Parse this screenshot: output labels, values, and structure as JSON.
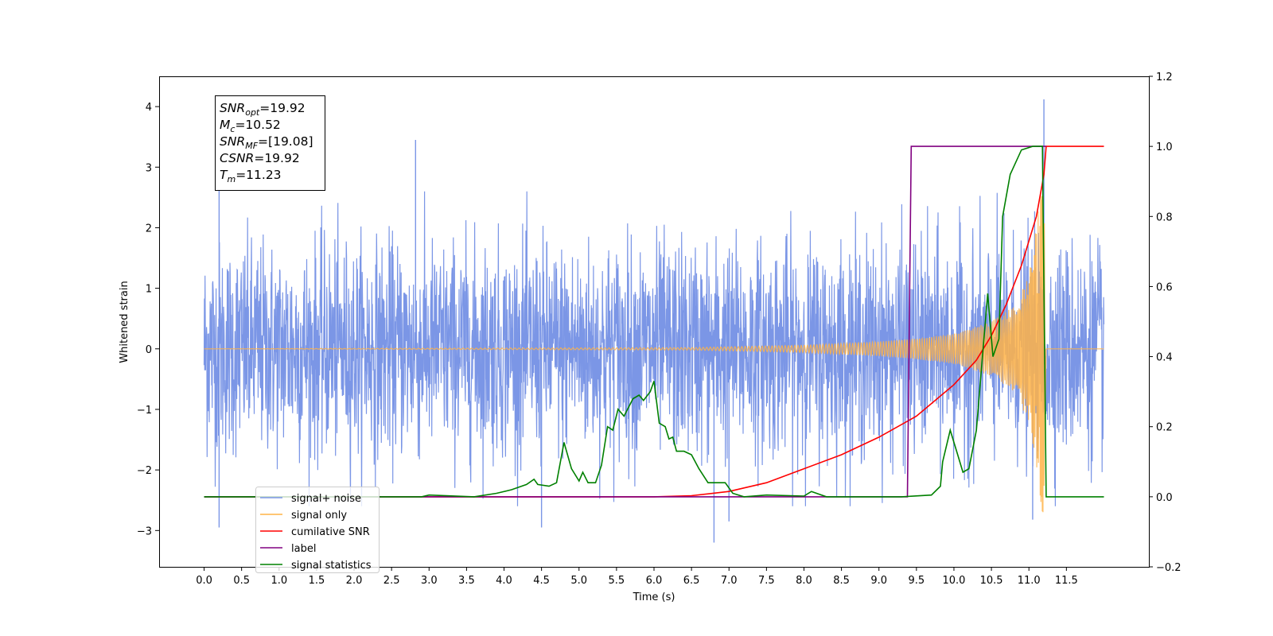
{
  "chart_data": {
    "type": "line",
    "xlabel": "Time (s)",
    "ylabel": "Whitened strain",
    "xlim": [
      -0.6,
      12.6
    ],
    "ylim": [
      -3.6,
      4.5
    ],
    "y2lim": [
      -0.2,
      1.2
    ],
    "x_ticks": [
      "0.0",
      "0.5",
      "1.0",
      "1.5",
      "2.0",
      "2.5",
      "3.0",
      "3.5",
      "4.0",
      "4.5",
      "5.0",
      "5.5",
      "6.0",
      "6.5",
      "7.0",
      "7.5",
      "8.0",
      "8.5",
      "9.0",
      "9.5",
      "10.0",
      "10.5",
      "11.0",
      "11.5"
    ],
    "y_ticks": [
      {
        "value": 4,
        "label": "4"
      },
      {
        "value": 3,
        "label": "3"
      },
      {
        "value": 2,
        "label": "2"
      },
      {
        "value": 1,
        "label": "1"
      },
      {
        "value": 0,
        "label": "0"
      },
      {
        "value": -1,
        "label": "−1"
      },
      {
        "value": -2,
        "label": "−2"
      },
      {
        "value": -3,
        "label": "−3"
      }
    ],
    "y2_ticks": [
      {
        "value": 1.2,
        "label": "1.2"
      },
      {
        "value": 1.0,
        "label": "1.0"
      },
      {
        "value": 0.8,
        "label": "0.8"
      },
      {
        "value": 0.6,
        "label": "0.6"
      },
      {
        "value": 0.4,
        "label": "0.4"
      },
      {
        "value": 0.2,
        "label": "0.2"
      },
      {
        "value": 0.0,
        "label": "0.0"
      },
      {
        "value": -0.2,
        "label": "−0.2"
      }
    ],
    "grid": false,
    "legend_position": "lower-left",
    "annotation_box": {
      "position": "top-left",
      "lines": [
        {
          "main": "SNR",
          "sub": "opt",
          "value": "=19.92"
        },
        {
          "main": "M",
          "sub": "c",
          "value": "=10.52"
        },
        {
          "main": "SNR",
          "sub": "MF",
          "value": "=[19.08]"
        },
        {
          "main": "CSNR",
          "sub": "",
          "value": "=19.92"
        },
        {
          "main": "T",
          "sub": "m",
          "value": "=11.23"
        }
      ]
    },
    "series": [
      {
        "name": "signal+ noise",
        "axis": "left",
        "color": "#7b96e6",
        "style": "noise-band",
        "x_range": [
          0.0,
          12.0
        ],
        "typical_amplitude": 1.4,
        "peaks": [
          [
            0.2,
            2.65
          ],
          [
            2.82,
            3.45
          ],
          [
            11.2,
            4.12
          ],
          [
            6.8,
            -3.2
          ],
          [
            0.2,
            -2.95
          ],
          [
            4.5,
            -2.95
          ],
          [
            7.0,
            -2.85
          ],
          [
            11.05,
            -2.82
          ]
        ]
      },
      {
        "name": "signal only",
        "axis": "left",
        "color": "#ffb347",
        "style": "chirp",
        "x_range": [
          0.0,
          12.0
        ],
        "merger_time": 11.23,
        "envelope": [
          [
            0.0,
            0.0
          ],
          [
            6.5,
            0.02
          ],
          [
            8.0,
            0.06
          ],
          [
            9.0,
            0.12
          ],
          [
            9.5,
            0.17
          ],
          [
            10.0,
            0.25
          ],
          [
            10.5,
            0.45
          ],
          [
            10.8,
            0.7
          ],
          [
            11.0,
            1.2
          ],
          [
            11.15,
            2.5
          ],
          [
            11.2,
            3.0
          ],
          [
            11.23,
            0.0
          ],
          [
            12.0,
            0.0
          ]
        ]
      },
      {
        "name": "cumilative SNR",
        "axis": "right",
        "color": "#ff0000",
        "points": [
          [
            0.0,
            0.0
          ],
          [
            6.0,
            0.0
          ],
          [
            6.5,
            0.003
          ],
          [
            7.0,
            0.015
          ],
          [
            7.5,
            0.04
          ],
          [
            8.0,
            0.08
          ],
          [
            8.5,
            0.12
          ],
          [
            9.0,
            0.17
          ],
          [
            9.5,
            0.23
          ],
          [
            10.0,
            0.32
          ],
          [
            10.3,
            0.39
          ],
          [
            10.5,
            0.46
          ],
          [
            10.7,
            0.55
          ],
          [
            10.9,
            0.66
          ],
          [
            11.1,
            0.8
          ],
          [
            11.2,
            0.92
          ],
          [
            11.23,
            1.0
          ],
          [
            12.0,
            1.0
          ]
        ]
      },
      {
        "name": "label",
        "axis": "right",
        "color": "#800080",
        "points": [
          [
            0.0,
            0.0
          ],
          [
            9.38,
            0.0
          ],
          [
            9.43,
            1.0
          ],
          [
            11.23,
            1.0
          ]
        ]
      },
      {
        "name": "signal statistics",
        "axis": "right",
        "color": "#008000",
        "points": [
          [
            0.0,
            0.0
          ],
          [
            2.9,
            0.0
          ],
          [
            3.0,
            0.005
          ],
          [
            3.6,
            0.0
          ],
          [
            3.9,
            0.01
          ],
          [
            4.1,
            0.02
          ],
          [
            4.3,
            0.035
          ],
          [
            4.4,
            0.05
          ],
          [
            4.45,
            0.035
          ],
          [
            4.6,
            0.03
          ],
          [
            4.7,
            0.04
          ],
          [
            4.8,
            0.155
          ],
          [
            4.9,
            0.08
          ],
          [
            5.0,
            0.045
          ],
          [
            5.05,
            0.07
          ],
          [
            5.12,
            0.04
          ],
          [
            5.22,
            0.04
          ],
          [
            5.3,
            0.09
          ],
          [
            5.38,
            0.2
          ],
          [
            5.45,
            0.19
          ],
          [
            5.52,
            0.25
          ],
          [
            5.6,
            0.23
          ],
          [
            5.72,
            0.28
          ],
          [
            5.8,
            0.29
          ],
          [
            5.86,
            0.275
          ],
          [
            5.95,
            0.3
          ],
          [
            6.0,
            0.33
          ],
          [
            6.07,
            0.21
          ],
          [
            6.15,
            0.2
          ],
          [
            6.2,
            0.165
          ],
          [
            6.25,
            0.17
          ],
          [
            6.3,
            0.13
          ],
          [
            6.4,
            0.13
          ],
          [
            6.5,
            0.12
          ],
          [
            6.6,
            0.08
          ],
          [
            6.72,
            0.04
          ],
          [
            6.82,
            0.04
          ],
          [
            6.95,
            0.04
          ],
          [
            7.05,
            0.01
          ],
          [
            7.2,
            0.0
          ],
          [
            7.5,
            0.005
          ],
          [
            8.0,
            0.002
          ],
          [
            8.1,
            0.015
          ],
          [
            8.3,
            0.0
          ],
          [
            9.3,
            0.0
          ],
          [
            9.7,
            0.005
          ],
          [
            9.82,
            0.03
          ],
          [
            9.85,
            0.1
          ],
          [
            9.95,
            0.19
          ],
          [
            10.05,
            0.12
          ],
          [
            10.12,
            0.07
          ],
          [
            10.2,
            0.08
          ],
          [
            10.3,
            0.19
          ],
          [
            10.38,
            0.4
          ],
          [
            10.45,
            0.58
          ],
          [
            10.52,
            0.4
          ],
          [
            10.6,
            0.45
          ],
          [
            10.65,
            0.8
          ],
          [
            10.75,
            0.92
          ],
          [
            10.9,
            0.99
          ],
          [
            11.05,
            1.0
          ],
          [
            11.15,
            1.0
          ],
          [
            11.18,
            1.0
          ],
          [
            11.23,
            0.0
          ],
          [
            12.0,
            0.0
          ]
        ]
      }
    ],
    "legend_entries": [
      {
        "label": "signal+ noise",
        "color": "#7b96e6"
      },
      {
        "label": "signal only",
        "color": "#ffb347"
      },
      {
        "label": "cumilative SNR",
        "color": "#ff0000"
      },
      {
        "label": "label",
        "color": "#800080"
      },
      {
        "label": "signal statistics",
        "color": "#008000"
      }
    ]
  }
}
